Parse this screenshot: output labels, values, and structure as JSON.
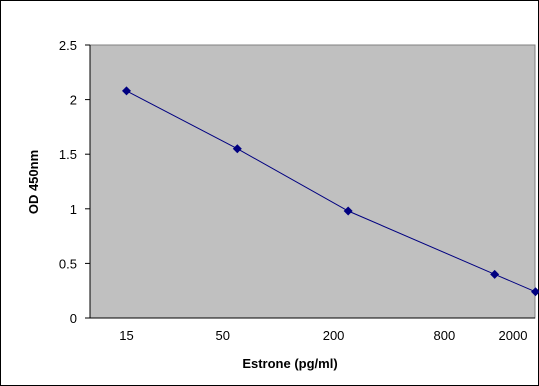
{
  "chart_data": {
    "type": "line",
    "title": "",
    "xlabel": "Estrone (pg/ml)",
    "ylabel": "OD 450nm",
    "x_scale": "log",
    "x_ticks": [
      {
        "value": 15,
        "label": "15"
      },
      {
        "value": 50,
        "label": "50"
      },
      {
        "value": 200,
        "label": "200"
      },
      {
        "value": 800,
        "label": "800"
      },
      {
        "value": 2000,
        "label": "2000"
      }
    ],
    "y_ticks": [
      {
        "value": 0,
        "label": "0"
      },
      {
        "value": 0.5,
        "label": "0.5"
      },
      {
        "value": 1,
        "label": "1"
      },
      {
        "value": 1.5,
        "label": "1.5"
      },
      {
        "value": 2,
        "label": "2"
      },
      {
        "value": 2.5,
        "label": "2.5"
      }
    ],
    "ylim": [
      0,
      2.5
    ],
    "grid": false,
    "legend": "none",
    "plot_background": "#C0C0C0",
    "series": [
      {
        "marker_color": "#000080",
        "line_color": "#000080",
        "x": [
          15,
          60,
          240,
          1500,
          2500
        ],
        "y": [
          2.08,
          1.55,
          0.98,
          0.4,
          0.24
        ]
      }
    ]
  }
}
